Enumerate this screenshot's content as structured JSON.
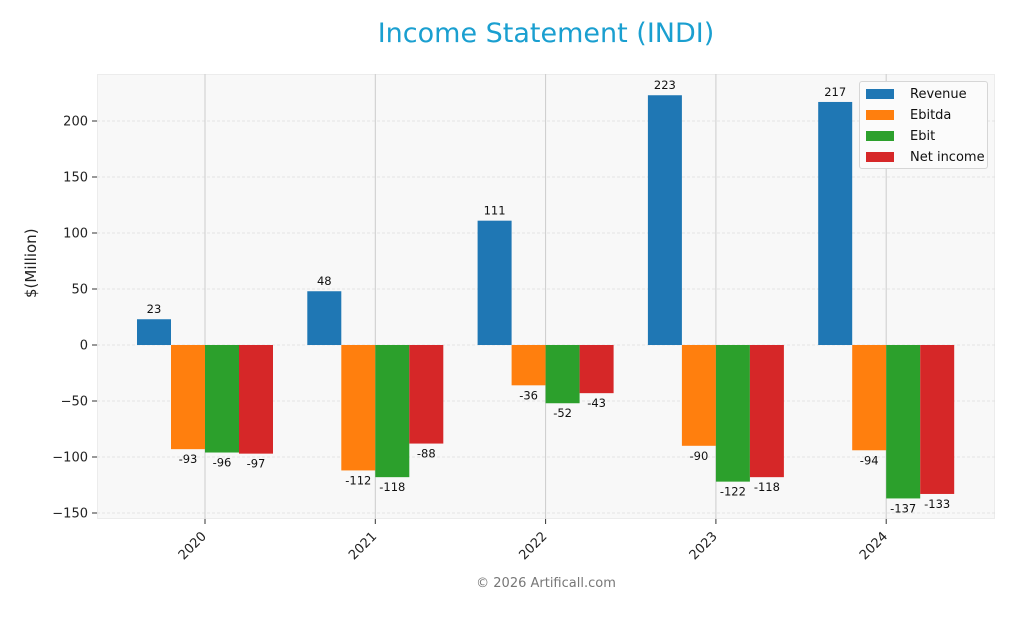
{
  "title": "Income Statement (INDI)",
  "y_axis_label": "$(Million)",
  "footer": "© 2026 Artificall.com",
  "colors": {
    "title": "#1a9fd0",
    "Revenue": "#1f77b4",
    "Ebitda": "#ff7f0e",
    "Ebit": "#2ca02c",
    "Net income": "#d62728"
  },
  "legend": [
    {
      "label": "Revenue",
      "color": "#1f77b4"
    },
    {
      "label": "Ebitda",
      "color": "#ff7f0e"
    },
    {
      "label": "Ebit",
      "color": "#2ca02c"
    },
    {
      "label": "Net income",
      "color": "#d62728"
    }
  ],
  "chart_data": {
    "type": "bar",
    "title": "Income Statement (INDI)",
    "xlabel": "",
    "ylabel": "$(Million)",
    "categories": [
      "2020",
      "2021",
      "2022",
      "2023",
      "2024"
    ],
    "series": [
      {
        "name": "Revenue",
        "values": [
          23,
          48,
          111,
          223,
          217
        ]
      },
      {
        "name": "Ebitda",
        "values": [
          -93,
          -112,
          -36,
          -90,
          -94
        ]
      },
      {
        "name": "Ebit",
        "values": [
          -96,
          -118,
          -52,
          -122,
          -137
        ]
      },
      {
        "name": "Net income",
        "values": [
          -97,
          -88,
          -43,
          -118,
          -133
        ]
      }
    ],
    "yticks": [
      -150,
      -100,
      -50,
      0,
      50,
      100,
      150,
      200
    ],
    "ylim": [
      -155,
      242
    ],
    "grid": true,
    "legend_position": "upper right"
  }
}
